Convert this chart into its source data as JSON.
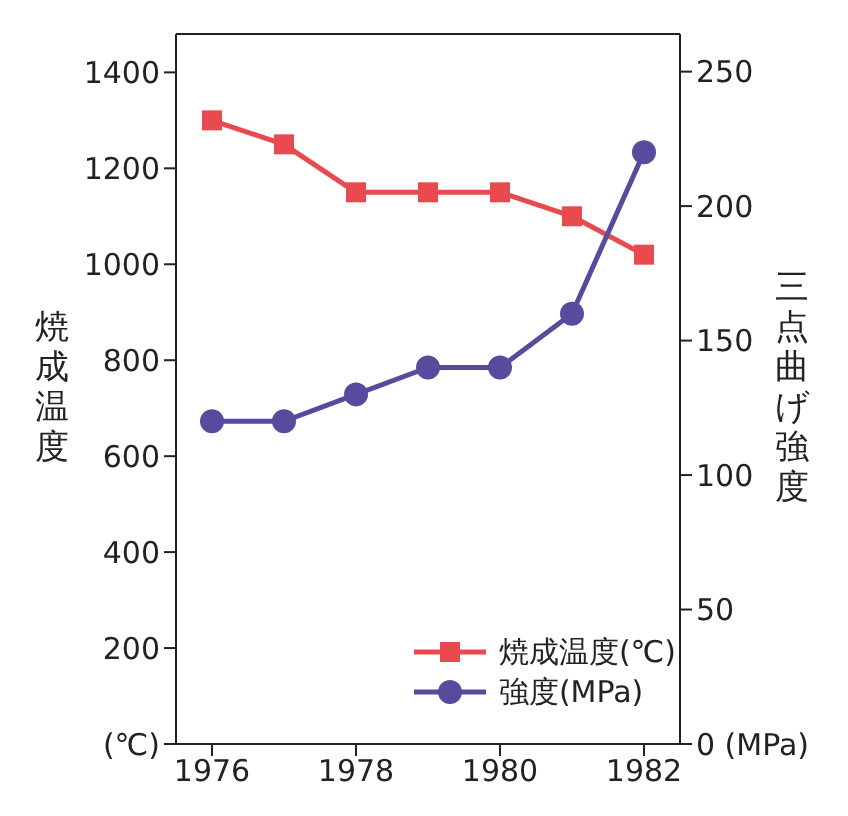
{
  "chart_data": {
    "type": "line",
    "ylabel": "焼成温度",
    "y2label": "三点曲げ強度",
    "x": [
      1976,
      1977,
      1978,
      1979,
      1980,
      1981,
      1982
    ],
    "series": [
      {
        "name": "焼成温度(℃)",
        "color": "#e84a4f",
        "marker": "square",
        "values": [
          1300,
          1250,
          1150,
          1150,
          1150,
          1100,
          1020
        ]
      },
      {
        "name": "強度(MPa)",
        "color": "#5a4a9e",
        "marker": "circle",
        "axis": "y2",
        "values": [
          120,
          120,
          130,
          140,
          140,
          160,
          220
        ]
      }
    ],
    "xlim": [
      1975.5,
      1982.5
    ],
    "xticks": [
      1976,
      1978,
      1980,
      1982
    ],
    "ylim": [
      0,
      1480
    ],
    "yticks": [
      {
        "value": 0,
        "label": "(℃)"
      },
      200,
      400,
      600,
      800,
      1000,
      1200,
      1400
    ],
    "y2lim": [
      0,
      264
    ],
    "y2ticks": [
      {
        "value": 0,
        "label": "0 (MPa)"
      },
      50,
      100,
      150,
      200,
      250
    ],
    "grid": false,
    "legend": "bottom right",
    "line_style": "solid"
  }
}
